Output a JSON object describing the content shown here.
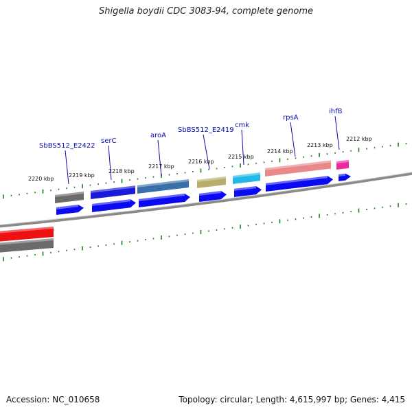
{
  "title": "Shigella boydii CDC 3083-94, complete genome",
  "footer": {
    "accession": "Accession: NC_010658",
    "summary": "Topology: circular; Length: 4,615,997 bp; Genes: 4,415"
  },
  "colors": {
    "backbone": "#8a8a8a",
    "tick": "#1a7a1a",
    "label": "#0a0aa8",
    "cds": "#0a0af0"
  },
  "gene_labels": [
    "SbBS512_E2422",
    "serC",
    "aroA",
    "SbBS512_E2419",
    "cmk",
    "rpsA",
    "ihfB"
  ],
  "kbp_labels": [
    "2220 kbp",
    "2219 kbp",
    "2218 kbp",
    "2217 kbp",
    "2216 kbp",
    "2215 kbp",
    "2214 kbp",
    "2213 kbp",
    "2212 kbp"
  ],
  "feature_colors": {
    "SbBS512_E2422": "#6b6b6b",
    "serC": "#1a1ad8",
    "aroA": "#3a6fa8",
    "SbBS512_E2419": "#b8ad6a",
    "cmk": "#22b8e8",
    "rpsA": "#e88888",
    "ihfB": "#ee2aa0",
    "left_red": "#ee1111",
    "left_gray": "#6b6b6b"
  }
}
